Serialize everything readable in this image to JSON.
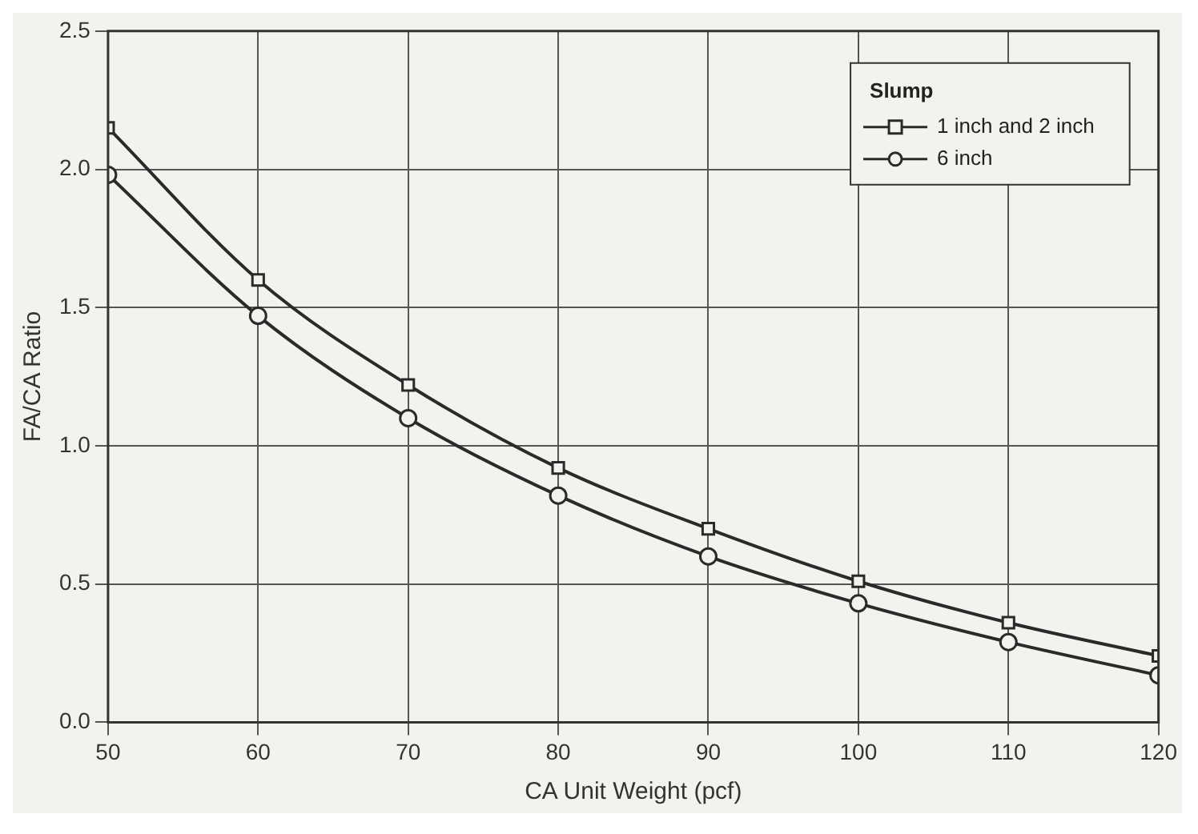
{
  "chart_data": {
    "type": "line",
    "xlabel": "CA Unit Weight (pcf)",
    "ylabel": "FA/CA Ratio",
    "legend_title": "Slump",
    "legend": "top right",
    "grid": true,
    "x": [
      50,
      60,
      70,
      80,
      90,
      100,
      110,
      120
    ],
    "series": [
      {
        "name": "1 inch and 2 inch",
        "color": "#2a2a2a",
        "marker": "square",
        "values": [
          2.15,
          1.6,
          1.22,
          0.92,
          0.7,
          0.51,
          0.36,
          0.24
        ]
      },
      {
        "name": "6 inch",
        "color": "#2a2a2a",
        "marker": "circle",
        "values": [
          1.98,
          1.47,
          1.1,
          0.82,
          0.6,
          0.43,
          0.29,
          0.17
        ]
      }
    ],
    "xlim": [
      50,
      120
    ],
    "xticks": [
      50,
      60,
      70,
      80,
      90,
      100,
      110,
      120
    ],
    "ylim": [
      0,
      2.5
    ],
    "yticks": [
      {
        "value": 0,
        "label": "0.0"
      },
      0.5,
      {
        "value": 1,
        "label": "1.0"
      },
      1.5,
      {
        "value": 2,
        "label": "2.0"
      },
      2.5
    ]
  }
}
